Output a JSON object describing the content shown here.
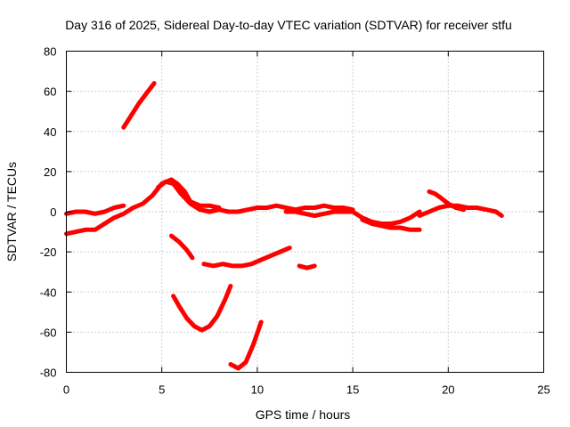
{
  "chart_data": {
    "type": "line",
    "title": "Day 316 of 2025, Sidereal Day-to-day VTEC variation (SDTVAR) for receiver stfu",
    "xlabel": "GPS time / hours",
    "ylabel": "SDTVAR / TECUs",
    "xlim": [
      0,
      25
    ],
    "ylim": [
      -80,
      80
    ],
    "xticks": [
      0,
      5,
      10,
      15,
      20,
      25
    ],
    "yticks": [
      -80,
      -60,
      -40,
      -20,
      0,
      20,
      40,
      60,
      80
    ],
    "grid": true,
    "legend": "none",
    "series_color": "#ff0000",
    "series": [
      {
        "name": "arc-1",
        "x": [
          0.0,
          0.5,
          1.0,
          1.5,
          2.0,
          2.5,
          3.0
        ],
        "y": [
          -1,
          0,
          0,
          -1,
          0,
          2,
          3
        ]
      },
      {
        "name": "arc-2",
        "x": [
          0.0,
          0.5,
          1.0,
          1.5,
          2.0,
          2.5,
          3.0,
          3.5,
          4.0,
          4.5,
          5.0,
          5.5,
          5.8,
          6.2,
          6.5,
          7.0,
          7.5,
          8.0
        ],
        "y": [
          -11,
          -10,
          -9,
          -9,
          -6,
          -3,
          -1,
          2,
          4,
          8,
          14,
          16,
          14,
          10,
          5,
          3,
          3,
          2
        ]
      },
      {
        "name": "arc-3",
        "x": [
          3.0,
          3.4,
          3.8,
          4.2,
          4.6
        ],
        "y": [
          42,
          48,
          54,
          59,
          64
        ]
      },
      {
        "name": "arc-4",
        "x": [
          4.8,
          5.2,
          5.6,
          6.0,
          6.5,
          7.0,
          7.5,
          8.0,
          8.5,
          9.0,
          9.5,
          10.0,
          10.5,
          11.0,
          11.5,
          12.0,
          12.5,
          13.0,
          13.5,
          14.0,
          14.5,
          15.0
        ],
        "y": [
          12,
          15,
          14,
          9,
          4,
          1,
          0,
          1,
          0,
          0,
          1,
          2,
          2,
          3,
          2,
          1,
          2,
          2,
          3,
          2,
          2,
          1
        ]
      },
      {
        "name": "arc-5",
        "x": [
          11.5,
          12.0,
          12.5,
          13.0,
          13.5,
          14.0,
          14.5,
          15.0,
          15.5,
          16.0,
          16.5,
          17.0,
          17.5,
          18.0,
          18.5
        ],
        "y": [
          0,
          0,
          -1,
          -2,
          -1,
          0,
          0,
          0,
          -3,
          -5,
          -6,
          -6,
          -5,
          -3,
          0
        ]
      },
      {
        "name": "arc-6",
        "x": [
          15.5,
          16.0,
          16.5,
          17.0,
          17.5,
          18.0,
          18.5
        ],
        "y": [
          -4,
          -6,
          -7,
          -8,
          -8,
          -9,
          -9
        ]
      },
      {
        "name": "arc-7",
        "x": [
          18.5,
          19.0,
          19.5,
          20.0,
          20.5,
          21.0,
          21.5,
          22.0,
          22.5,
          22.8
        ],
        "y": [
          -2,
          0,
          2,
          3,
          3,
          2,
          2,
          1,
          0,
          -2
        ]
      },
      {
        "name": "arc-8",
        "x": [
          19.0,
          19.3,
          19.6,
          20.0,
          20.4,
          20.8
        ],
        "y": [
          10,
          9,
          7,
          4,
          2,
          1
        ]
      },
      {
        "name": "arc-9",
        "x": [
          5.5,
          5.9,
          6.3,
          6.6
        ],
        "y": [
          -12,
          -15,
          -19,
          -23
        ]
      },
      {
        "name": "arc-10",
        "x": [
          7.2,
          7.7,
          8.2,
          8.7,
          9.2,
          9.7,
          10.2,
          10.7,
          11.2,
          11.7
        ],
        "y": [
          -26,
          -27,
          -26,
          -27,
          -27,
          -26,
          -24,
          -22,
          -20,
          -18
        ]
      },
      {
        "name": "arc-11",
        "x": [
          12.2,
          12.6,
          13.0
        ],
        "y": [
          -27,
          -28,
          -27
        ]
      },
      {
        "name": "arc-12",
        "x": [
          5.6,
          5.9,
          6.3,
          6.7,
          7.1,
          7.5,
          7.9,
          8.3,
          8.6
        ],
        "y": [
          -42,
          -47,
          -53,
          -57,
          -59,
          -57,
          -52,
          -44,
          -37
        ]
      },
      {
        "name": "arc-13",
        "x": [
          8.6,
          9.0,
          9.4,
          9.8,
          10.2
        ],
        "y": [
          -76,
          -78,
          -75,
          -66,
          -55
        ]
      }
    ]
  }
}
